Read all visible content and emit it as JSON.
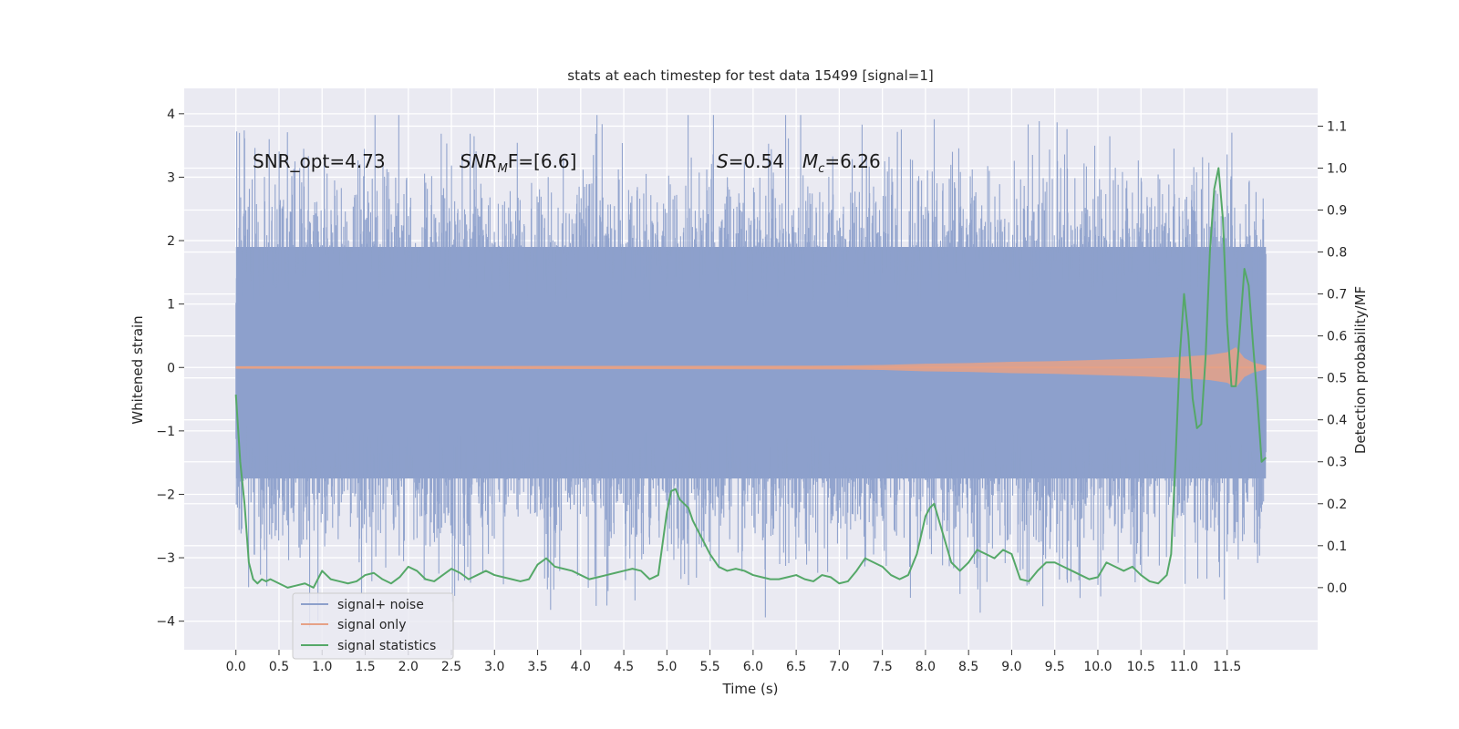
{
  "chart_data": {
    "type": "line",
    "title": "stats at each timestep for test data 15499 [signal=1]",
    "xlabel": "Time (s)",
    "ylabel": "Whitened strain",
    "y2label": "Detection probability/MF",
    "xlim": [
      -0.6,
      12.55
    ],
    "ylim": [
      -4.45,
      4.4
    ],
    "y2lim": [
      -0.148,
      1.19
    ],
    "xticks": [
      0.0,
      0.5,
      1.0,
      1.5,
      2.0,
      2.5,
      3.0,
      3.5,
      4.0,
      4.5,
      5.0,
      5.5,
      6.0,
      6.5,
      7.0,
      7.5,
      8.0,
      8.5,
      9.0,
      9.5,
      10.0,
      10.5,
      11.0,
      11.5
    ],
    "xtick_labels": [
      "0.0",
      "0.5",
      "1.0",
      "1.5",
      "2.0",
      "2.5",
      "3.0",
      "3.5",
      "4.0",
      "4.5",
      "5.0",
      "5.5",
      "6.0",
      "6.5",
      "7.0",
      "7.5",
      "8.0",
      "8.5",
      "9.0",
      "9.5",
      "10.0",
      "10.5",
      "11.0",
      "11.5"
    ],
    "yticks": [
      -4,
      -3,
      -2,
      -1,
      0,
      1,
      2,
      3,
      4
    ],
    "ytick_labels": [
      "−4",
      "−3",
      "−2",
      "−1",
      "0",
      "1",
      "2",
      "3",
      "4"
    ],
    "y2ticks": [
      0.0,
      0.1,
      0.2,
      0.3,
      0.4,
      0.5,
      0.6,
      0.7,
      0.8,
      0.9,
      1.0,
      1.1
    ],
    "y2tick_labels": [
      "0.0",
      "0.1",
      "0.2",
      "0.3",
      "0.4",
      "0.5",
      "0.6",
      "0.7",
      "0.8",
      "0.9",
      "1.0",
      "1.1"
    ],
    "grid": true,
    "legend_position": "lower-left",
    "annotations": {
      "snr_opt": "SNR_opt=4.73",
      "snr_mf_main": "SNR",
      "snr_mf_sub": "M",
      "snr_mf_rest": "F=[6.6]",
      "s_main": "S",
      "s_rest": "=0.54",
      "mc_main": "M",
      "mc_sub": "c",
      "mc_rest": "=6.26"
    },
    "series": [
      {
        "name": "signal+ noise",
        "color": "#8da0cb",
        "x_range": [
          0.0,
          11.95
        ],
        "band_upper": 1.9,
        "band_lower": -1.75,
        "extreme_max": 3.98,
        "extreme_min": -4.1
      },
      {
        "name": "signal only",
        "color": "#e6a186",
        "x": [
          0.0,
          7.0,
          7.5,
          8.0,
          8.5,
          9.0,
          9.5,
          10.0,
          10.5,
          11.0,
          11.3,
          11.5,
          11.6,
          11.7,
          11.8,
          11.95
        ],
        "envelope": [
          0.02,
          0.03,
          0.04,
          0.06,
          0.07,
          0.09,
          0.1,
          0.12,
          0.14,
          0.17,
          0.2,
          0.24,
          0.32,
          0.15,
          0.08,
          0.03
        ]
      },
      {
        "name": "signal statistics",
        "color": "#55a868",
        "x": [
          0.0,
          0.05,
          0.1,
          0.15,
          0.2,
          0.25,
          0.3,
          0.35,
          0.4,
          0.5,
          0.6,
          0.7,
          0.8,
          0.9,
          1.0,
          1.1,
          1.2,
          1.3,
          1.4,
          1.5,
          1.6,
          1.7,
          1.8,
          1.9,
          2.0,
          2.1,
          2.2,
          2.3,
          2.4,
          2.5,
          2.6,
          2.7,
          2.8,
          2.9,
          3.0,
          3.1,
          3.2,
          3.3,
          3.4,
          3.5,
          3.6,
          3.7,
          3.8,
          3.9,
          4.0,
          4.1,
          4.2,
          4.3,
          4.4,
          4.5,
          4.6,
          4.7,
          4.8,
          4.9,
          5.0,
          5.05,
          5.1,
          5.15,
          5.2,
          5.25,
          5.3,
          5.35,
          5.4,
          5.45,
          5.5,
          5.6,
          5.7,
          5.8,
          5.9,
          6.0,
          6.1,
          6.2,
          6.3,
          6.4,
          6.5,
          6.6,
          6.7,
          6.8,
          6.9,
          7.0,
          7.1,
          7.2,
          7.3,
          7.4,
          7.5,
          7.6,
          7.7,
          7.8,
          7.9,
          8.0,
          8.05,
          8.1,
          8.2,
          8.3,
          8.4,
          8.5,
          8.6,
          8.7,
          8.8,
          8.9,
          9.0,
          9.1,
          9.2,
          9.3,
          9.4,
          9.5,
          9.6,
          9.7,
          9.8,
          9.9,
          10.0,
          10.1,
          10.2,
          10.3,
          10.4,
          10.5,
          10.6,
          10.7,
          10.8,
          10.85,
          10.9,
          10.95,
          11.0,
          11.05,
          11.1,
          11.15,
          11.2,
          11.25,
          11.3,
          11.35,
          11.4,
          11.45,
          11.5,
          11.55,
          11.6,
          11.65,
          11.7,
          11.75,
          11.8,
          11.85,
          11.9,
          11.95
        ],
        "values": [
          0.46,
          0.3,
          0.2,
          0.06,
          0.02,
          0.01,
          0.02,
          0.015,
          0.02,
          0.01,
          0.0,
          0.005,
          0.01,
          0.0,
          0.04,
          0.02,
          0.015,
          0.01,
          0.015,
          0.03,
          0.035,
          0.02,
          0.01,
          0.025,
          0.05,
          0.04,
          0.02,
          0.015,
          0.03,
          0.045,
          0.035,
          0.02,
          0.03,
          0.04,
          0.03,
          0.025,
          0.02,
          0.015,
          0.02,
          0.055,
          0.07,
          0.05,
          0.045,
          0.04,
          0.03,
          0.02,
          0.025,
          0.03,
          0.035,
          0.04,
          0.045,
          0.04,
          0.02,
          0.03,
          0.18,
          0.23,
          0.235,
          0.21,
          0.2,
          0.19,
          0.16,
          0.14,
          0.12,
          0.1,
          0.08,
          0.05,
          0.04,
          0.045,
          0.04,
          0.03,
          0.025,
          0.02,
          0.02,
          0.025,
          0.03,
          0.02,
          0.015,
          0.03,
          0.025,
          0.01,
          0.015,
          0.04,
          0.07,
          0.06,
          0.05,
          0.03,
          0.02,
          0.03,
          0.08,
          0.17,
          0.19,
          0.2,
          0.13,
          0.06,
          0.04,
          0.06,
          0.09,
          0.08,
          0.07,
          0.09,
          0.08,
          0.02,
          0.015,
          0.04,
          0.06,
          0.06,
          0.05,
          0.04,
          0.03,
          0.02,
          0.025,
          0.06,
          0.05,
          0.04,
          0.05,
          0.03,
          0.015,
          0.01,
          0.03,
          0.08,
          0.3,
          0.55,
          0.7,
          0.6,
          0.45,
          0.38,
          0.39,
          0.55,
          0.8,
          0.95,
          1.0,
          0.88,
          0.63,
          0.48,
          0.48,
          0.62,
          0.76,
          0.72,
          0.58,
          0.45,
          0.3,
          0.31
        ]
      }
    ]
  }
}
